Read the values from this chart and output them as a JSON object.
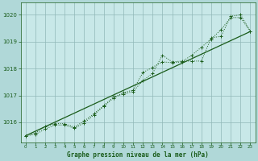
{
  "title": "Graphe pression niveau de la mer (hPa)",
  "background_color": "#b0d8d8",
  "plot_bg_color": "#c8e8e8",
  "grid_color": "#90b8b8",
  "line_color": "#1a5c1a",
  "xlim": [
    -0.5,
    23.5
  ],
  "ylim": [
    1015.25,
    1020.45
  ],
  "yticks": [
    1016,
    1017,
    1018,
    1019,
    1020
  ],
  "xticks": [
    0,
    1,
    2,
    3,
    4,
    5,
    6,
    7,
    8,
    9,
    10,
    11,
    12,
    13,
    14,
    15,
    16,
    17,
    18,
    19,
    20,
    21,
    22,
    23
  ],
  "series1": [
    1015.5,
    1015.6,
    1015.85,
    1015.95,
    1015.95,
    1015.82,
    1016.05,
    1016.32,
    1016.62,
    1016.95,
    1017.05,
    1017.15,
    1017.55,
    1017.82,
    1018.5,
    1018.25,
    1018.28,
    1018.28,
    1018.28,
    1019.15,
    1019.2,
    1019.95,
    1020.0,
    1019.4
  ],
  "series2": [
    1015.5,
    1015.55,
    1015.75,
    1015.9,
    1015.9,
    1015.78,
    1015.98,
    1016.28,
    1016.6,
    1016.9,
    1017.1,
    1017.2,
    1017.85,
    1018.05,
    1018.25,
    1018.22,
    1018.25,
    1018.5,
    1018.8,
    1019.1,
    1019.45,
    1019.9,
    1019.9,
    1019.38
  ],
  "trend_x": [
    0,
    23
  ],
  "trend_y": [
    1015.5,
    1019.38
  ]
}
